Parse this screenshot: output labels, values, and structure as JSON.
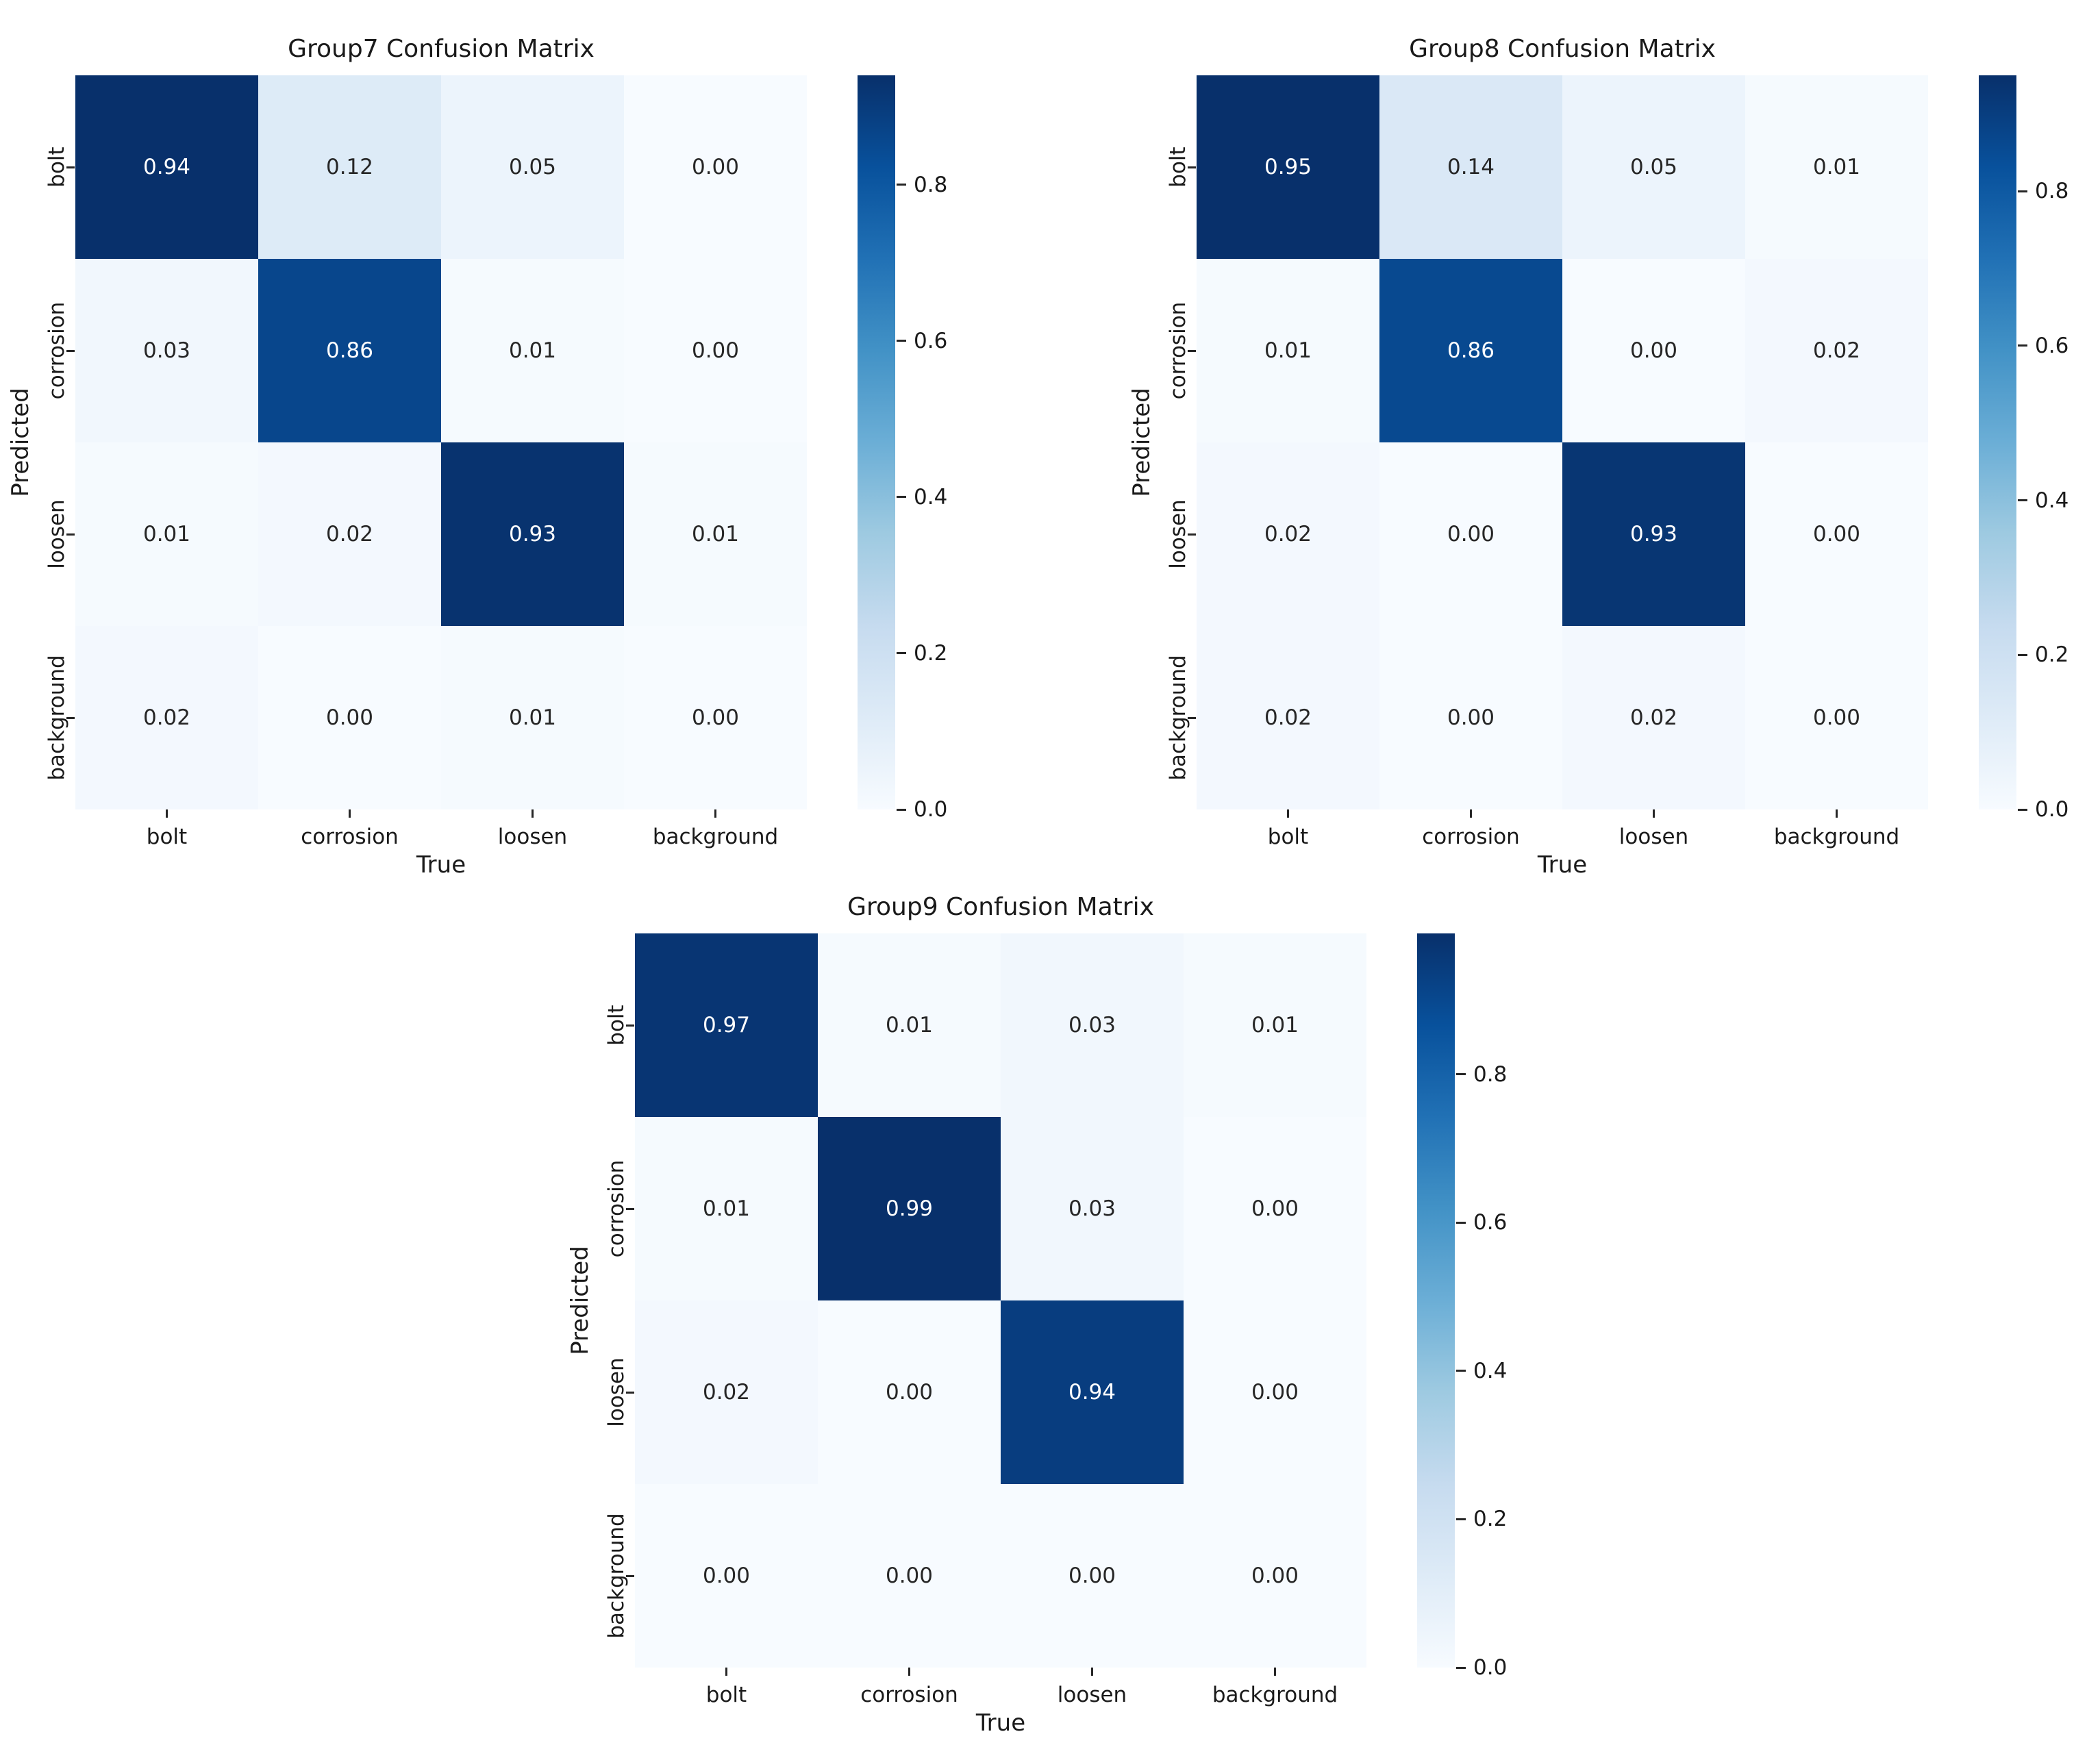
{
  "figure": {
    "background": "#ffffff",
    "colormap_name": "Blues",
    "colormap_anchors": [
      "#f7fbff",
      "#deebf7",
      "#c6dbef",
      "#9ecae1",
      "#6baed6",
      "#4292c6",
      "#2171b5",
      "#08519c",
      "#08306b"
    ],
    "annotation_color_dark": "#262626",
    "annotation_color_light": "#ffffff",
    "tick_color": "#262626"
  },
  "chart_data": [
    {
      "type": "heatmap",
      "title": "Group7 Confusion Matrix",
      "xlabel": "True",
      "ylabel": "Predicted",
      "x_categories": [
        "bolt",
        "corrosion",
        "loosen",
        "background"
      ],
      "y_categories": [
        "bolt",
        "corrosion",
        "loosen",
        "background"
      ],
      "matrix": [
        [
          0.94,
          0.12,
          0.05,
          0.0
        ],
        [
          0.03,
          0.86,
          0.01,
          0.0
        ],
        [
          0.01,
          0.02,
          0.93,
          0.01
        ],
        [
          0.02,
          0.0,
          0.01,
          0.0
        ]
      ],
      "vmin": 0.0,
      "vmax": 0.94,
      "colorbar_ticks": [
        0.0,
        0.2,
        0.4,
        0.6,
        0.8
      ],
      "colorbar_position": "right",
      "grid": false
    },
    {
      "type": "heatmap",
      "title": "Group8 Confusion Matrix",
      "xlabel": "True",
      "ylabel": "Predicted",
      "x_categories": [
        "bolt",
        "corrosion",
        "loosen",
        "background"
      ],
      "y_categories": [
        "bolt",
        "corrosion",
        "loosen",
        "background"
      ],
      "matrix": [
        [
          0.95,
          0.14,
          0.05,
          0.01
        ],
        [
          0.01,
          0.86,
          0.0,
          0.02
        ],
        [
          0.02,
          0.0,
          0.93,
          0.0
        ],
        [
          0.02,
          0.0,
          0.02,
          0.0
        ]
      ],
      "vmin": 0.0,
      "vmax": 0.95,
      "colorbar_ticks": [
        0.0,
        0.2,
        0.4,
        0.6,
        0.8
      ],
      "colorbar_position": "right",
      "grid": false
    },
    {
      "type": "heatmap",
      "title": "Group9 Confusion Matrix",
      "xlabel": "True",
      "ylabel": "Predicted",
      "x_categories": [
        "bolt",
        "corrosion",
        "loosen",
        "background"
      ],
      "y_categories": [
        "bolt",
        "corrosion",
        "loosen",
        "background"
      ],
      "matrix": [
        [
          0.97,
          0.01,
          0.03,
          0.01
        ],
        [
          0.01,
          0.99,
          0.03,
          0.0
        ],
        [
          0.02,
          0.0,
          0.94,
          0.0
        ],
        [
          0.0,
          0.0,
          0.0,
          0.0
        ]
      ],
      "vmin": 0.0,
      "vmax": 0.99,
      "colorbar_ticks": [
        0.0,
        0.2,
        0.4,
        0.6,
        0.8
      ],
      "colorbar_position": "right",
      "grid": false
    }
  ]
}
